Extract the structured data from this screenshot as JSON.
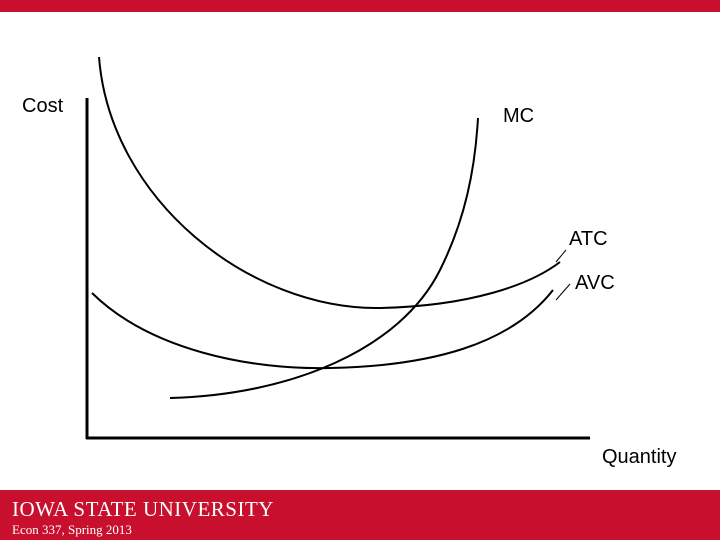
{
  "labels": {
    "y_axis": "Cost",
    "x_axis": "Quantity",
    "mc": "MC",
    "atc": "ATC",
    "avc": "AVC"
  },
  "footer": {
    "logo": "IOWA STATE UNIVERSITY",
    "course": "Econ 337, Spring 2013"
  }
}
